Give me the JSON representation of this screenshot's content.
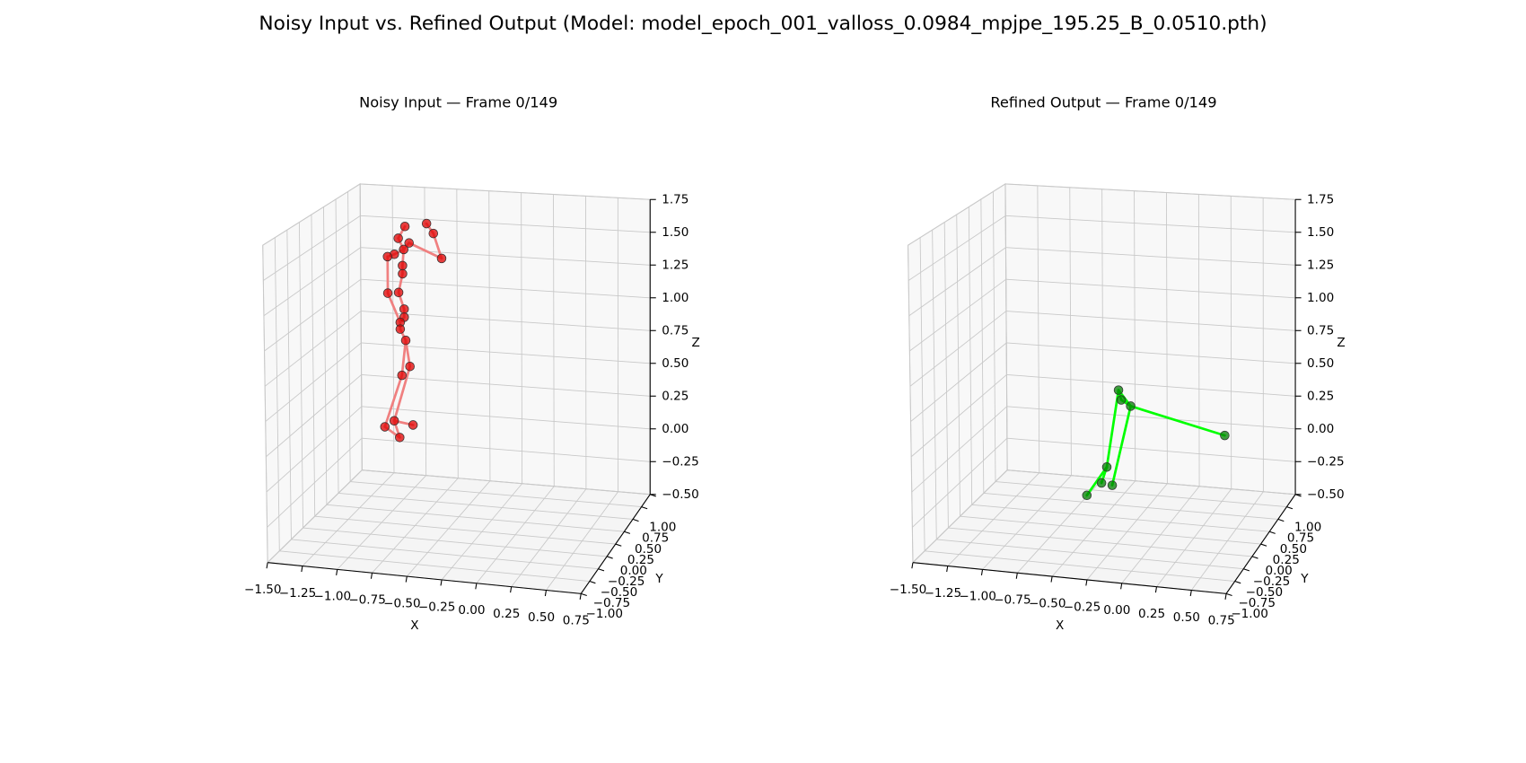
{
  "title": "Noisy Input vs. Refined Output (Model: model_epoch_001_valloss_0.0984_mpjpe_195.25_B_0.0510.pth)",
  "chart_data": [
    {
      "type": "scatter3d",
      "title": "Noisy Input — Frame 0/149",
      "xlabel": "X",
      "ylabel": "Y",
      "zlabel": "Z",
      "xlim": [
        -1.5,
        0.75
      ],
      "ylim": [
        -1,
        1
      ],
      "zlim": [
        -0.5,
        1.75
      ],
      "xticks": [
        {
          "value": -1.5,
          "label": "−1.50"
        },
        {
          "value": -1.25,
          "label": "−1.25"
        },
        {
          "value": -1,
          "label": "−1.00"
        },
        {
          "value": -0.75,
          "label": "−0.75"
        },
        {
          "value": -0.5,
          "label": "−0.50"
        },
        {
          "value": -0.25,
          "label": "−0.25"
        },
        {
          "value": 0,
          "label": "0.00"
        },
        {
          "value": 0.25,
          "label": "0.25"
        },
        {
          "value": 0.5,
          "label": "0.50"
        },
        {
          "value": 0.75,
          "label": "0.75"
        }
      ],
      "yticks": [
        {
          "value": -1,
          "label": "−1.00"
        },
        {
          "value": -0.75,
          "label": "−0.75"
        },
        {
          "value": -0.5,
          "label": "−0.50"
        },
        {
          "value": -0.25,
          "label": "−0.25"
        },
        {
          "value": 0,
          "label": "0.00"
        },
        {
          "value": 0.25,
          "label": "0.25"
        },
        {
          "value": 0.5,
          "label": "0.50"
        },
        {
          "value": 0.75,
          "label": "0.75"
        },
        {
          "value": 1,
          "label": "1.00"
        }
      ],
      "zticks": [
        {
          "value": -0.5,
          "label": "−0.50"
        },
        {
          "value": -0.25,
          "label": "−0.25"
        },
        {
          "value": 0,
          "label": "0.00"
        },
        {
          "value": 0.25,
          "label": "0.25"
        },
        {
          "value": 0.5,
          "label": "0.50"
        },
        {
          "value": 0.75,
          "label": "0.75"
        },
        {
          "value": 1,
          "label": "1.00"
        },
        {
          "value": 1.25,
          "label": "1.25"
        },
        {
          "value": 1.5,
          "label": "1.50"
        },
        {
          "value": 1.75,
          "label": "1.75"
        }
      ],
      "grid": true,
      "series": [
        {
          "color": "#e00000",
          "line_color": "#f08080",
          "x": [
            -0.65,
            -0.6,
            -0.54,
            -0.81,
            -0.86,
            -0.78,
            -0.82,
            -0.89,
            -0.94,
            -0.83,
            -0.83,
            -0.94,
            -0.86,
            -0.82,
            -0.82,
            -0.85,
            -0.85,
            -0.81,
            -0.78,
            -0.84,
            -0.9,
            -0.97,
            -0.76,
            -0.86
          ],
          "y": [
            0,
            0,
            0,
            0,
            0,
            0,
            0,
            0,
            0,
            0,
            0,
            0,
            0,
            0,
            0,
            0,
            0,
            0,
            0,
            0,
            0,
            0,
            0,
            0
          ],
          "z": [
            1.73,
            1.66,
            1.48,
            1.7,
            1.61,
            1.58,
            1.53,
            1.49,
            1.47,
            1.41,
            1.35,
            1.2,
            1.21,
            1.09,
            1.03,
            0.99,
            0.94,
            0.86,
            0.67,
            0.6,
            0.26,
            0.21,
            0.24,
            0.14
          ],
          "edges": [
            [
              3,
              4
            ],
            [
              4,
              6
            ],
            [
              6,
              5
            ],
            [
              5,
              2
            ],
            [
              2,
              1
            ],
            [
              1,
              0
            ],
            [
              6,
              7
            ],
            [
              7,
              8
            ],
            [
              8,
              11
            ],
            [
              11,
              15
            ],
            [
              6,
              9
            ],
            [
              9,
              10
            ],
            [
              10,
              12
            ],
            [
              12,
              13
            ],
            [
              13,
              14
            ],
            [
              14,
              15
            ],
            [
              15,
              16
            ],
            [
              16,
              17
            ],
            [
              17,
              18
            ],
            [
              17,
              19
            ],
            [
              19,
              21
            ],
            [
              18,
              20
            ],
            [
              21,
              23
            ],
            [
              20,
              22
            ],
            [
              20,
              23
            ]
          ]
        }
      ]
    },
    {
      "type": "scatter3d",
      "title": "Refined Output — Frame 0/149",
      "xlabel": "X",
      "ylabel": "Y",
      "zlabel": "Z",
      "xlim": [
        -1.5,
        0.75
      ],
      "ylim": [
        -1,
        1
      ],
      "zlim": [
        -0.5,
        1.75
      ],
      "xticks": [
        {
          "value": -1.5,
          "label": "−1.50"
        },
        {
          "value": -1.25,
          "label": "−1.25"
        },
        {
          "value": -1,
          "label": "−1.00"
        },
        {
          "value": -0.75,
          "label": "−0.75"
        },
        {
          "value": -0.5,
          "label": "−0.50"
        },
        {
          "value": -0.25,
          "label": "−0.25"
        },
        {
          "value": 0,
          "label": "0.00"
        },
        {
          "value": 0.25,
          "label": "0.25"
        },
        {
          "value": 0.5,
          "label": "0.50"
        },
        {
          "value": 0.75,
          "label": "0.75"
        }
      ],
      "yticks": [
        {
          "value": -1,
          "label": "−1.00"
        },
        {
          "value": -0.75,
          "label": "−0.75"
        },
        {
          "value": -0.5,
          "label": "−0.50"
        },
        {
          "value": -0.25,
          "label": "−0.25"
        },
        {
          "value": 0,
          "label": "0.00"
        },
        {
          "value": 0.25,
          "label": "0.25"
        },
        {
          "value": 0.5,
          "label": "0.50"
        },
        {
          "value": 0.75,
          "label": "0.75"
        },
        {
          "value": 1,
          "label": "1.00"
        }
      ],
      "zticks": [
        {
          "value": -0.5,
          "label": "−0.50"
        },
        {
          "value": -0.25,
          "label": "−0.25"
        },
        {
          "value": 0,
          "label": "0.00"
        },
        {
          "value": 0.25,
          "label": "0.25"
        },
        {
          "value": 0.5,
          "label": "0.50"
        },
        {
          "value": 0.75,
          "label": "0.75"
        },
        {
          "value": 1,
          "label": "1.00"
        },
        {
          "value": 1.25,
          "label": "1.25"
        },
        {
          "value": 1.5,
          "label": "1.50"
        },
        {
          "value": 1.75,
          "label": "1.75"
        }
      ],
      "grid": true,
      "series": [
        {
          "color": "#008000",
          "line_color": "#00ff00",
          "x": [
            -0.31,
            -0.29,
            -0.22,
            0.48,
            -0.4,
            -0.44,
            -0.36,
            -0.55
          ],
          "y": [
            0,
            0,
            0,
            0,
            0,
            0,
            0,
            0
          ],
          "z": [
            0.53,
            0.46,
            0.42,
            0.26,
            -0.04,
            -0.16,
            -0.17,
            -0.26
          ],
          "edges": [
            [
              0,
              1
            ],
            [
              1,
              2
            ],
            [
              0,
              2
            ],
            [
              2,
              3
            ],
            [
              2,
              6
            ],
            [
              0,
              4
            ],
            [
              4,
              7
            ],
            [
              4,
              5
            ]
          ]
        }
      ]
    }
  ]
}
